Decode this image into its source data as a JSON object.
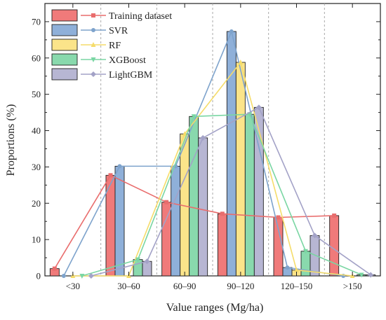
{
  "chart_data": {
    "type": "bar",
    "xlabel": "Value ranges (Mg/ha)",
    "ylabel": "Proportions (%)",
    "ylim": [
      0,
      75
    ],
    "yticks": [
      0,
      10,
      20,
      30,
      40,
      50,
      60,
      70
    ],
    "categories": [
      "<30",
      "30–60",
      "60–90",
      "90–120",
      "120–150",
      ">150"
    ],
    "grid": "vertical dashed separators between categories",
    "legend_position": "top-left",
    "overlay_lines": true,
    "series": [
      {
        "name": "Training dataset",
        "color": "#f07a7a",
        "line_color": "#e96d6d",
        "marker": "square",
        "values": [
          2.0,
          27.7,
          20.3,
          17.1,
          16.1,
          16.6
        ]
      },
      {
        "name": "SVR",
        "color": "#8fb0d9",
        "line_color": "#7ea3cc",
        "marker": "circle",
        "values": [
          0.0,
          30.2,
          30.2,
          67.3,
          2.3,
          0.0
        ]
      },
      {
        "name": "RF",
        "color": "#fbe48a",
        "line_color": "#f5dc6a",
        "marker": "triangle-up",
        "values": [
          0.0,
          0.0,
          39.1,
          58.8,
          1.6,
          0.0
        ]
      },
      {
        "name": "XGBoost",
        "color": "#89d9ad",
        "line_color": "#7ad6a3",
        "marker": "triangle-down",
        "values": [
          0.0,
          4.5,
          43.9,
          44.5,
          6.8,
          0.3
        ]
      },
      {
        "name": "LightGBM",
        "color": "#b7b6d3",
        "line_color": "#a3a2c7",
        "marker": "diamond",
        "values": [
          0.0,
          4.0,
          38.0,
          46.4,
          11.1,
          0.3
        ]
      }
    ]
  }
}
